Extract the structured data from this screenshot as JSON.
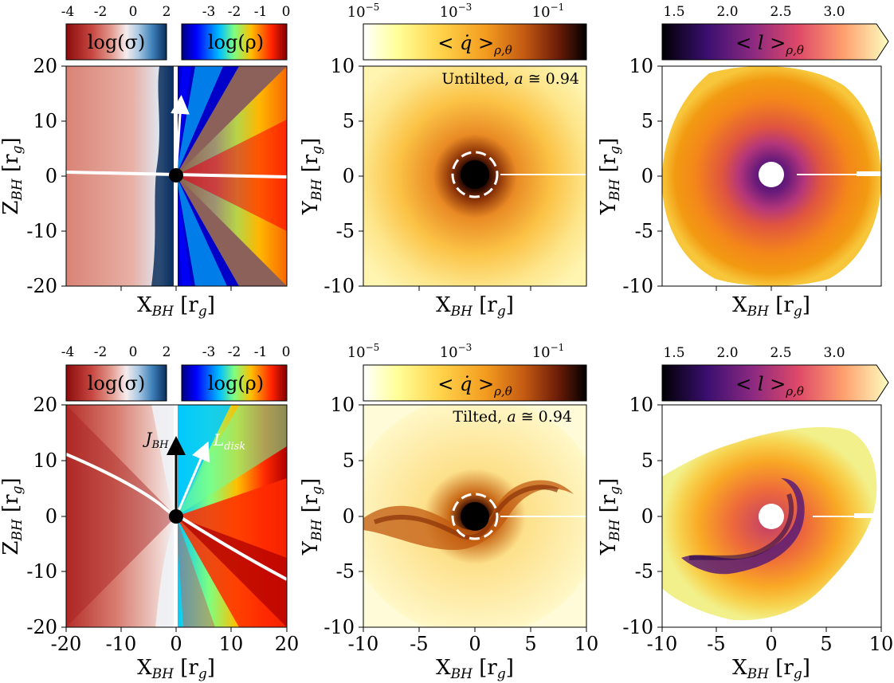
{
  "colors": {
    "sigma_scale": [
      "#8b0c0c",
      "#c6453f",
      "#e39a8e",
      "#f6ecec",
      "#a9c9e4",
      "#3d7fb8",
      "#0a2f5e"
    ],
    "rho_scale": [
      "#00007f",
      "#0000ff",
      "#00bfff",
      "#7fff7f",
      "#ffbf00",
      "#ff2000",
      "#800000"
    ],
    "qdot_scale": [
      "#ffffff",
      "#ffff99",
      "#ffd24a",
      "#f39b1e",
      "#c45a13",
      "#6e1d08",
      "#000000"
    ],
    "l_scale": [
      "#000004",
      "#3b0f70",
      "#8c2981",
      "#de4968",
      "#fe9f6d",
      "#fcfdbf"
    ]
  },
  "chart_data": [
    {
      "id": "top-left",
      "type": "heatmap",
      "xlabel": "X_BH [r_g]",
      "ylabel": "Z_BH [r_g]",
      "xlim": [
        -20,
        20
      ],
      "ylim": [
        -20,
        20
      ],
      "xticks": [],
      "yticks": [
        "20",
        "10",
        "0",
        "-10",
        "-20"
      ],
      "colorbars": [
        {
          "quantity": "σ",
          "label": "log(σ)",
          "ticks": [
            "-4",
            "-2",
            "0",
            "2"
          ],
          "range": [
            -4,
            2.5
          ]
        },
        {
          "quantity": "ρ",
          "label": "log(ρ)",
          "ticks": [
            "-3",
            "-2",
            "-1",
            "0"
          ],
          "range": [
            -4,
            0
          ]
        }
      ],
      "disk_midplane": {
        "x": [
          -20,
          -10,
          0,
          10,
          20
        ],
        "z": [
          0.5,
          0.3,
          0,
          -0.2,
          -0.5
        ]
      },
      "arrows": [
        {
          "name": "J_BH",
          "label": "",
          "from": [
            0,
            0
          ],
          "to": [
            0.7,
            14.5
          ]
        }
      ]
    },
    {
      "id": "top-middle",
      "type": "heatmap",
      "xlabel": "X_BH [r_g]",
      "ylabel": "Y_BH [r_g]",
      "xlim": [
        -10,
        10
      ],
      "ylim": [
        -10,
        10
      ],
      "xticks": [],
      "yticks": [
        "10",
        "5",
        "0",
        "-5",
        "-10"
      ],
      "annotation": "Untilted, a ≅ 0.94",
      "spin": 0.94,
      "colorbar": {
        "label": "<q̇>ρ,θ",
        "ticks": [
          "10⁻⁵",
          "10⁻³",
          "10⁻¹"
        ],
        "range": [
          -5,
          0
        ],
        "scale": "log"
      },
      "horizon_circle_radius": 2
    },
    {
      "id": "top-right",
      "type": "heatmap",
      "xlabel": "X_BH [r_g]",
      "ylabel": "Y_BH [r_g]",
      "xlim": [
        -10,
        10
      ],
      "ylim": [
        -10,
        10
      ],
      "xticks": [],
      "yticks": [
        "10",
        "5",
        "0",
        "-5",
        "-10"
      ],
      "colorbar": {
        "label": "<l>ρ,θ",
        "ticks": [
          "1.5",
          "2.0",
          "2.5",
          "3.0"
        ],
        "range": [
          1.35,
          3.3
        ],
        "extend": "max"
      },
      "excised_radius": 1.1
    },
    {
      "id": "bottom-left",
      "type": "heatmap",
      "xlabel": "X_BH [r_g]",
      "ylabel": "Z_BH [r_g]",
      "xlim": [
        -20,
        20
      ],
      "ylim": [
        -20,
        20
      ],
      "xticks": [
        "-20",
        "-10",
        "0",
        "10",
        "20"
      ],
      "yticks": [
        "20",
        "10",
        "0",
        "-10",
        "-20"
      ],
      "colorbars": [
        {
          "quantity": "σ",
          "label": "log(σ)",
          "ticks": [
            "-4",
            "-2",
            "0",
            "2"
          ],
          "range": [
            -4,
            2.5
          ]
        },
        {
          "quantity": "ρ",
          "label": "log(ρ)",
          "ticks": [
            "-3",
            "-2",
            "-1",
            "0"
          ],
          "range": [
            -4,
            0
          ]
        }
      ],
      "disk_midplane": {
        "x": [
          -20,
          -10,
          -5,
          0,
          5,
          10,
          20
        ],
        "z": [
          11.2,
          7,
          4,
          0,
          -3.5,
          -6.5,
          -11.2
        ]
      },
      "arrows": [
        {
          "name": "J_BH",
          "label": "J_BH",
          "from": [
            0,
            0
          ],
          "to": [
            0,
            15
          ]
        },
        {
          "name": "L_disk",
          "label": "L_disk",
          "from": [
            0,
            0
          ],
          "to": [
            6.3,
            13.8
          ]
        }
      ]
    },
    {
      "id": "bottom-middle",
      "type": "heatmap",
      "xlabel": "X_BH [r_g]",
      "ylabel": "Y_BH [r_g]",
      "xlim": [
        -10,
        10
      ],
      "ylim": [
        -10,
        10
      ],
      "xticks": [
        "-10",
        "-5",
        "0",
        "5",
        "10"
      ],
      "yticks": [
        "10",
        "5",
        "0",
        "-5",
        "-10"
      ],
      "annotation": "Tilted, a ≅ 0.94",
      "spin": 0.94,
      "colorbar": {
        "label": "<q̇>ρ,θ",
        "ticks": [
          "10⁻⁵",
          "10⁻³",
          "10⁻¹"
        ],
        "range": [
          -5,
          0
        ],
        "scale": "log"
      },
      "horizon_circle_radius": 2
    },
    {
      "id": "bottom-right",
      "type": "heatmap",
      "xlabel": "X_BH [r_g]",
      "ylabel": "Y_BH [r_g]",
      "xlim": [
        -10,
        10
      ],
      "ylim": [
        -10,
        10
      ],
      "xticks": [
        "-10",
        "-5",
        "0",
        "5",
        "10"
      ],
      "yticks": [
        "10",
        "5",
        "0",
        "-5",
        "-10"
      ],
      "colorbar": {
        "label": "<l>ρ,θ",
        "ticks": [
          "1.5",
          "2.0",
          "2.5",
          "3.0"
        ],
        "range": [
          1.35,
          3.3
        ],
        "extend": "max"
      },
      "excised_radius": 1.1
    }
  ]
}
